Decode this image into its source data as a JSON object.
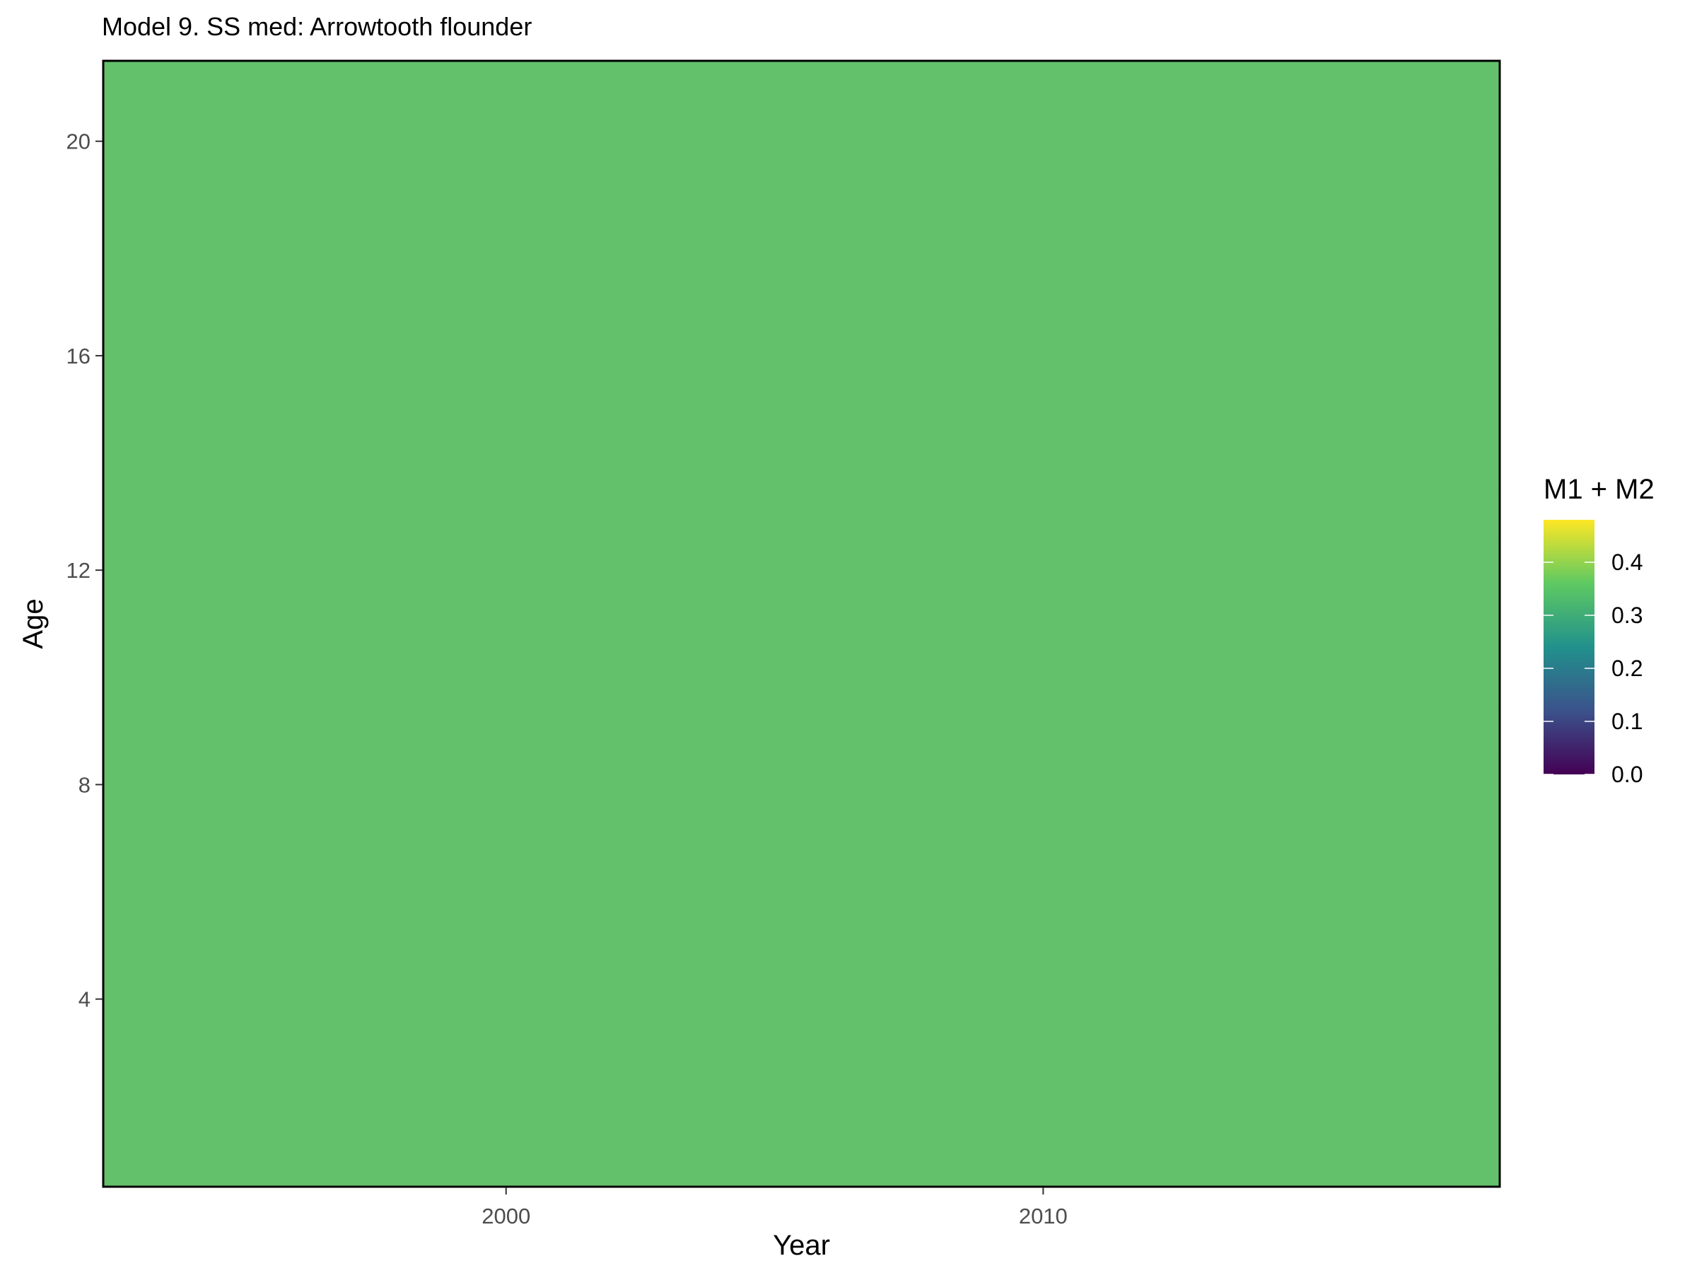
{
  "chart_data": {
    "type": "heatmap",
    "title": "Model 9. SS med: Arrowtooth flounder",
    "xlabel": "Year",
    "ylabel": "Age",
    "x_range": [
      1992.5,
      2018.5
    ],
    "y_range": [
      0.5,
      21.5
    ],
    "x_ticks": [
      2000,
      2010
    ],
    "x_tick_labels": [
      "2000",
      "2010"
    ],
    "y_ticks": [
      4,
      8,
      12,
      16,
      20
    ],
    "y_tick_labels": [
      "4",
      "8",
      "12",
      "16",
      "20"
    ],
    "years": [
      1993,
      2018
    ],
    "ages": [
      1,
      21
    ],
    "cell_value": 0.35,
    "cell_color": "#63c16b",
    "grid": false,
    "legend": {
      "title": "M1 + M2",
      "position": "right",
      "range": [
        0.0,
        0.48
      ],
      "breaks": [
        0.0,
        0.1,
        0.2,
        0.3,
        0.4
      ],
      "labels": [
        "0.0",
        "0.1",
        "0.2",
        "0.3",
        "0.4"
      ],
      "colormap": [
        "#440154",
        "#3b528b",
        "#21918c",
        "#5ec962",
        "#fde725"
      ]
    }
  }
}
